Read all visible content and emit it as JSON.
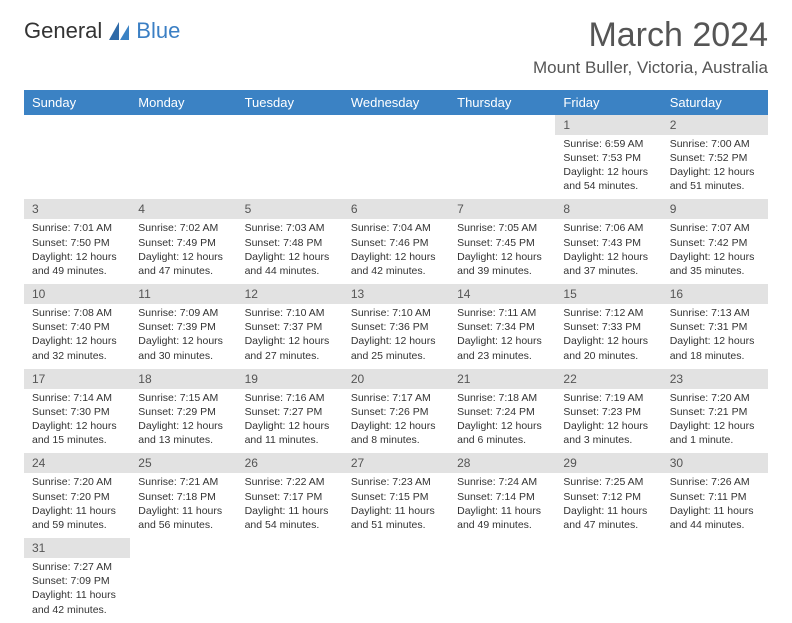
{
  "header": {
    "logo_general": "General",
    "logo_blue": "Blue",
    "month_title": "March 2024",
    "location": "Mount Buller, Victoria, Australia"
  },
  "styling": {
    "header_bg": "#3b82c4",
    "header_text": "#ffffff",
    "daynum_bg": "#e2e2e2",
    "text_color": "#333333",
    "brand_blue": "#3b7fc4",
    "page_bg": "#ffffff"
  },
  "columns": [
    "Sunday",
    "Monday",
    "Tuesday",
    "Wednesday",
    "Thursday",
    "Friday",
    "Saturday"
  ],
  "weeks": [
    [
      null,
      null,
      null,
      null,
      null,
      {
        "n": "1",
        "sr": "Sunrise: 6:59 AM",
        "ss": "Sunset: 7:53 PM",
        "d1": "Daylight: 12 hours",
        "d2": "and 54 minutes."
      },
      {
        "n": "2",
        "sr": "Sunrise: 7:00 AM",
        "ss": "Sunset: 7:52 PM",
        "d1": "Daylight: 12 hours",
        "d2": "and 51 minutes."
      }
    ],
    [
      {
        "n": "3",
        "sr": "Sunrise: 7:01 AM",
        "ss": "Sunset: 7:50 PM",
        "d1": "Daylight: 12 hours",
        "d2": "and 49 minutes."
      },
      {
        "n": "4",
        "sr": "Sunrise: 7:02 AM",
        "ss": "Sunset: 7:49 PM",
        "d1": "Daylight: 12 hours",
        "d2": "and 47 minutes."
      },
      {
        "n": "5",
        "sr": "Sunrise: 7:03 AM",
        "ss": "Sunset: 7:48 PM",
        "d1": "Daylight: 12 hours",
        "d2": "and 44 minutes."
      },
      {
        "n": "6",
        "sr": "Sunrise: 7:04 AM",
        "ss": "Sunset: 7:46 PM",
        "d1": "Daylight: 12 hours",
        "d2": "and 42 minutes."
      },
      {
        "n": "7",
        "sr": "Sunrise: 7:05 AM",
        "ss": "Sunset: 7:45 PM",
        "d1": "Daylight: 12 hours",
        "d2": "and 39 minutes."
      },
      {
        "n": "8",
        "sr": "Sunrise: 7:06 AM",
        "ss": "Sunset: 7:43 PM",
        "d1": "Daylight: 12 hours",
        "d2": "and 37 minutes."
      },
      {
        "n": "9",
        "sr": "Sunrise: 7:07 AM",
        "ss": "Sunset: 7:42 PM",
        "d1": "Daylight: 12 hours",
        "d2": "and 35 minutes."
      }
    ],
    [
      {
        "n": "10",
        "sr": "Sunrise: 7:08 AM",
        "ss": "Sunset: 7:40 PM",
        "d1": "Daylight: 12 hours",
        "d2": "and 32 minutes."
      },
      {
        "n": "11",
        "sr": "Sunrise: 7:09 AM",
        "ss": "Sunset: 7:39 PM",
        "d1": "Daylight: 12 hours",
        "d2": "and 30 minutes."
      },
      {
        "n": "12",
        "sr": "Sunrise: 7:10 AM",
        "ss": "Sunset: 7:37 PM",
        "d1": "Daylight: 12 hours",
        "d2": "and 27 minutes."
      },
      {
        "n": "13",
        "sr": "Sunrise: 7:10 AM",
        "ss": "Sunset: 7:36 PM",
        "d1": "Daylight: 12 hours",
        "d2": "and 25 minutes."
      },
      {
        "n": "14",
        "sr": "Sunrise: 7:11 AM",
        "ss": "Sunset: 7:34 PM",
        "d1": "Daylight: 12 hours",
        "d2": "and 23 minutes."
      },
      {
        "n": "15",
        "sr": "Sunrise: 7:12 AM",
        "ss": "Sunset: 7:33 PM",
        "d1": "Daylight: 12 hours",
        "d2": "and 20 minutes."
      },
      {
        "n": "16",
        "sr": "Sunrise: 7:13 AM",
        "ss": "Sunset: 7:31 PM",
        "d1": "Daylight: 12 hours",
        "d2": "and 18 minutes."
      }
    ],
    [
      {
        "n": "17",
        "sr": "Sunrise: 7:14 AM",
        "ss": "Sunset: 7:30 PM",
        "d1": "Daylight: 12 hours",
        "d2": "and 15 minutes."
      },
      {
        "n": "18",
        "sr": "Sunrise: 7:15 AM",
        "ss": "Sunset: 7:29 PM",
        "d1": "Daylight: 12 hours",
        "d2": "and 13 minutes."
      },
      {
        "n": "19",
        "sr": "Sunrise: 7:16 AM",
        "ss": "Sunset: 7:27 PM",
        "d1": "Daylight: 12 hours",
        "d2": "and 11 minutes."
      },
      {
        "n": "20",
        "sr": "Sunrise: 7:17 AM",
        "ss": "Sunset: 7:26 PM",
        "d1": "Daylight: 12 hours",
        "d2": "and 8 minutes."
      },
      {
        "n": "21",
        "sr": "Sunrise: 7:18 AM",
        "ss": "Sunset: 7:24 PM",
        "d1": "Daylight: 12 hours",
        "d2": "and 6 minutes."
      },
      {
        "n": "22",
        "sr": "Sunrise: 7:19 AM",
        "ss": "Sunset: 7:23 PM",
        "d1": "Daylight: 12 hours",
        "d2": "and 3 minutes."
      },
      {
        "n": "23",
        "sr": "Sunrise: 7:20 AM",
        "ss": "Sunset: 7:21 PM",
        "d1": "Daylight: 12 hours",
        "d2": "and 1 minute."
      }
    ],
    [
      {
        "n": "24",
        "sr": "Sunrise: 7:20 AM",
        "ss": "Sunset: 7:20 PM",
        "d1": "Daylight: 11 hours",
        "d2": "and 59 minutes."
      },
      {
        "n": "25",
        "sr": "Sunrise: 7:21 AM",
        "ss": "Sunset: 7:18 PM",
        "d1": "Daylight: 11 hours",
        "d2": "and 56 minutes."
      },
      {
        "n": "26",
        "sr": "Sunrise: 7:22 AM",
        "ss": "Sunset: 7:17 PM",
        "d1": "Daylight: 11 hours",
        "d2": "and 54 minutes."
      },
      {
        "n": "27",
        "sr": "Sunrise: 7:23 AM",
        "ss": "Sunset: 7:15 PM",
        "d1": "Daylight: 11 hours",
        "d2": "and 51 minutes."
      },
      {
        "n": "28",
        "sr": "Sunrise: 7:24 AM",
        "ss": "Sunset: 7:14 PM",
        "d1": "Daylight: 11 hours",
        "d2": "and 49 minutes."
      },
      {
        "n": "29",
        "sr": "Sunrise: 7:25 AM",
        "ss": "Sunset: 7:12 PM",
        "d1": "Daylight: 11 hours",
        "d2": "and 47 minutes."
      },
      {
        "n": "30",
        "sr": "Sunrise: 7:26 AM",
        "ss": "Sunset: 7:11 PM",
        "d1": "Daylight: 11 hours",
        "d2": "and 44 minutes."
      }
    ],
    [
      {
        "n": "31",
        "sr": "Sunrise: 7:27 AM",
        "ss": "Sunset: 7:09 PM",
        "d1": "Daylight: 11 hours",
        "d2": "and 42 minutes."
      },
      null,
      null,
      null,
      null,
      null,
      null
    ]
  ]
}
